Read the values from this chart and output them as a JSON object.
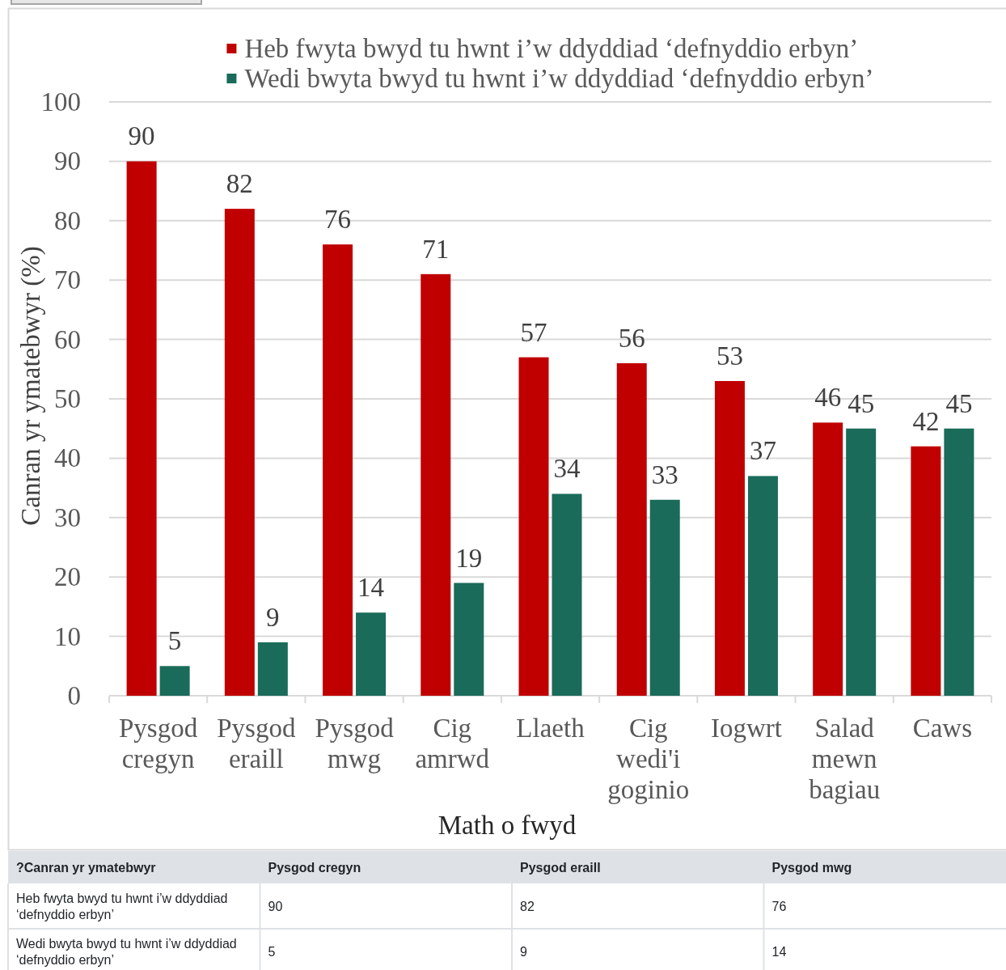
{
  "chart_data": [
    {
      "type": "bar",
      "xlabel": "Math o fwyd",
      "ylabel": "Canran yr ymatebwyr (%)",
      "categories": [
        "Pysgod cregyn",
        "Pysgod eraill",
        "Pysgod mwg",
        "Cig amrwd",
        "Llaeth",
        "Cig wedi'i goginio",
        "Iogwrt",
        "Salad mewn bagiau",
        "Caws"
      ],
      "series": [
        {
          "name": "Heb fwyta bwyd tu hwnt i’w ddyddiad ‘defnyddio erbyn’",
          "color": "#c00000",
          "values": [
            90,
            82,
            76,
            71,
            57,
            56,
            53,
            46,
            42
          ]
        },
        {
          "name": "Wedi bwyta bwyd tu hwnt i’w ddyddiad ‘defnyddio erbyn’",
          "color": "#1a6b5a",
          "values": [
            5,
            9,
            14,
            19,
            34,
            33,
            37,
            45,
            45
          ]
        }
      ],
      "ylim": [
        0,
        100
      ],
      "yticks": [
        0,
        10,
        20,
        30,
        40,
        50,
        60,
        70,
        80,
        90,
        100
      ],
      "grid": "y",
      "legend": "top",
      "data_labels": true
    },
    {
      "type": "other",
      "title": "?Canran yr ymatebwyr",
      "categories": [
        "Pysgod cregyn",
        "Pysgod eraill",
        "Pysgod mwg"
      ],
      "data_labels": true,
      "series": [
        {
          "name": "Heb fwyta bwyd tu hwnt i’w ddyddiad ‘defnyddio erbyn’",
          "values": [
            90,
            82,
            76
          ]
        },
        {
          "name": "Wedi bwyta bwyd tu hwnt i’w ddyddiad ‘defnyddio erbyn’",
          "values": [
            5,
            9,
            14
          ]
        }
      ]
    }
  ]
}
